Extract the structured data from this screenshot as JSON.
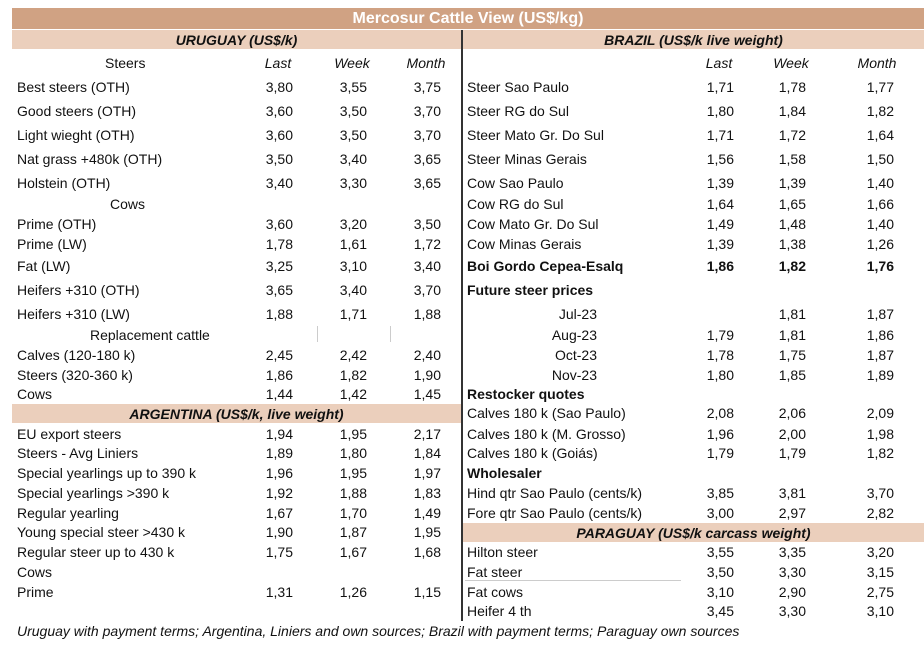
{
  "title": "Mercosur Cattle View (US$/kg)",
  "colors": {
    "title_bar": "#d0a283",
    "section_bar": "#ebcfbc"
  },
  "columns": [
    "Last",
    "Week",
    "Month"
  ],
  "uruguay": {
    "header": "URUGUAY (US$/k)",
    "rows": [
      {
        "type": "colhead",
        "label": "Steers"
      },
      {
        "label": "Best steers (OTH)",
        "values": [
          "3,80",
          "3,55",
          "3,75"
        ]
      },
      {
        "label": "Good steers (OTH)",
        "values": [
          "3,60",
          "3,50",
          "3,70"
        ]
      },
      {
        "label": "Light wieght (OTH)",
        "values": [
          "3,60",
          "3,50",
          "3,70"
        ]
      },
      {
        "label": "Nat grass +480k (OTH)",
        "values": [
          "3,50",
          "3,40",
          "3,65"
        ]
      },
      {
        "label": "Holstein (OTH)",
        "values": [
          "3,40",
          "3,30",
          "3,65"
        ]
      },
      {
        "type": "sub",
        "label": "Cows"
      },
      {
        "label": "Prime (OTH)",
        "values": [
          "3,60",
          "3,20",
          "3,50"
        ]
      },
      {
        "label": "Prime (LW)",
        "values": [
          "1,78",
          "1,61",
          "1,72"
        ]
      },
      {
        "label": "Fat (LW)",
        "values": [
          "3,25",
          "3,10",
          "3,40"
        ]
      },
      {
        "label": "Heifers +310 (OTH)",
        "values": [
          "3,65",
          "3,40",
          "3,70"
        ]
      },
      {
        "label": "Heifers +310 (LW)",
        "values": [
          "1,88",
          "1,71",
          "1,88"
        ]
      },
      {
        "type": "sub",
        "label": "Replacement cattle"
      },
      {
        "label": "Calves (120-180 k)",
        "values": [
          "2,45",
          "2,42",
          "2,40"
        ]
      },
      {
        "label": "Steers (320-360 k)",
        "values": [
          "1,86",
          "1,82",
          "1,90"
        ]
      },
      {
        "label": "Cows",
        "values": [
          "1,44",
          "1,42",
          "1,45"
        ]
      }
    ]
  },
  "argentina": {
    "header": "ARGENTINA (US$/k, live weight)",
    "rows": [
      {
        "label": "EU export steers",
        "values": [
          "1,94",
          "1,95",
          "2,17"
        ]
      },
      {
        "label": "Steers - Avg Liniers",
        "values": [
          "1,89",
          "1,80",
          "1,84"
        ]
      },
      {
        "label": "Special yearlings up to 390 k",
        "values": [
          "1,96",
          "1,95",
          "1,97"
        ]
      },
      {
        "label": "Special yearlings >390 k",
        "values": [
          "1,92",
          "1,88",
          "1,83"
        ]
      },
      {
        "label": "Regular yearling",
        "values": [
          "1,67",
          "1,70",
          "1,49"
        ]
      },
      {
        "label": "Young special steer >430 k",
        "values": [
          "1,90",
          "1,87",
          "1,95"
        ]
      },
      {
        "label": "Regular steer up to 430 k",
        "values": [
          "1,75",
          "1,67",
          "1,68"
        ]
      },
      {
        "label": "Cows",
        "values": []
      },
      {
        "label": "Prime",
        "values": [
          "1,31",
          "1,26",
          "1,15"
        ]
      }
    ]
  },
  "brazil": {
    "header": "BRAZIL  (US$/k live weight)",
    "rows": [
      {
        "type": "colhead",
        "label": ""
      },
      {
        "label": "Steer Sao Paulo",
        "values": [
          "1,71",
          "1,78",
          "1,77"
        ]
      },
      {
        "label": "Steer RG do Sul",
        "values": [
          "1,80",
          "1,84",
          "1,82"
        ]
      },
      {
        "label": "Steer Mato Gr. Do Sul",
        "values": [
          "1,71",
          "1,72",
          "1,64"
        ]
      },
      {
        "label": "Steer Minas Gerais",
        "values": [
          "1,56",
          "1,58",
          "1,50"
        ]
      },
      {
        "label": "Cow Sao Paulo",
        "values": [
          "1,39",
          "1,39",
          "1,40"
        ]
      },
      {
        "label": "Cow RG do Sul",
        "values": [
          "1,64",
          "1,65",
          "1,66"
        ]
      },
      {
        "label": "Cow Mato Gr. Do Sul",
        "values": [
          "1,49",
          "1,48",
          "1,40"
        ]
      },
      {
        "label": "Cow Minas Gerais",
        "values": [
          "1,39",
          "1,38",
          "1,26"
        ]
      },
      {
        "type": "bold",
        "label": "Boi Gordo Cepea-Esalq",
        "values": [
          "1,86",
          "1,82",
          "1,76"
        ]
      },
      {
        "type": "bold",
        "label": "Future steer prices",
        "values": []
      },
      {
        "type": "indent",
        "label": "Jul-23",
        "values": [
          "",
          "1,81",
          "1,87"
        ]
      },
      {
        "type": "indent",
        "label": "Aug-23",
        "values": [
          "1,79",
          "1,81",
          "1,86"
        ]
      },
      {
        "type": "indent",
        "label": "Oct-23",
        "values": [
          "1,78",
          "1,75",
          "1,87"
        ]
      },
      {
        "type": "indent",
        "label": "Nov-23",
        "values": [
          "1,80",
          "1,85",
          "1,89"
        ]
      },
      {
        "type": "bold",
        "label": "Restocker quotes",
        "values": []
      },
      {
        "label": "Calves 180 k (Sao Paulo)",
        "values": [
          "2,08",
          "2,06",
          "2,09"
        ]
      },
      {
        "label": "Calves 180 k (M. Grosso)",
        "values": [
          "1,96",
          "2,00",
          "1,98"
        ]
      },
      {
        "label": "Calves 180 k (Goiás)",
        "values": [
          "1,79",
          "1,79",
          "1,82"
        ]
      },
      {
        "type": "bold",
        "label": "Wholesaler",
        "values": []
      },
      {
        "label": "Hind qtr Sao Paulo (cents/k)",
        "values": [
          "3,85",
          "3,81",
          "3,70"
        ]
      },
      {
        "label": "Fore qtr Sao Paulo (cents/k)",
        "values": [
          "3,00",
          "2,97",
          "2,82"
        ]
      }
    ]
  },
  "paraguay": {
    "header": "PARAGUAY  (US$/k carcass weight)",
    "rows": [
      {
        "label": "Hilton steer",
        "values": [
          "3,55",
          "3,35",
          "3,20"
        ]
      },
      {
        "label": "Fat steer",
        "values": [
          "3,50",
          "3,30",
          "3,15"
        ]
      },
      {
        "label": "Fat cows",
        "values": [
          "3,10",
          "2,90",
          "2,75"
        ]
      },
      {
        "label": "Heifer 4 th",
        "values": [
          "3,45",
          "3,30",
          "3,10"
        ]
      }
    ]
  },
  "footnote": "Uruguay with payment terms; Argentina, Liniers and own sources; Brazil with payment terms; Paraguay own sources"
}
